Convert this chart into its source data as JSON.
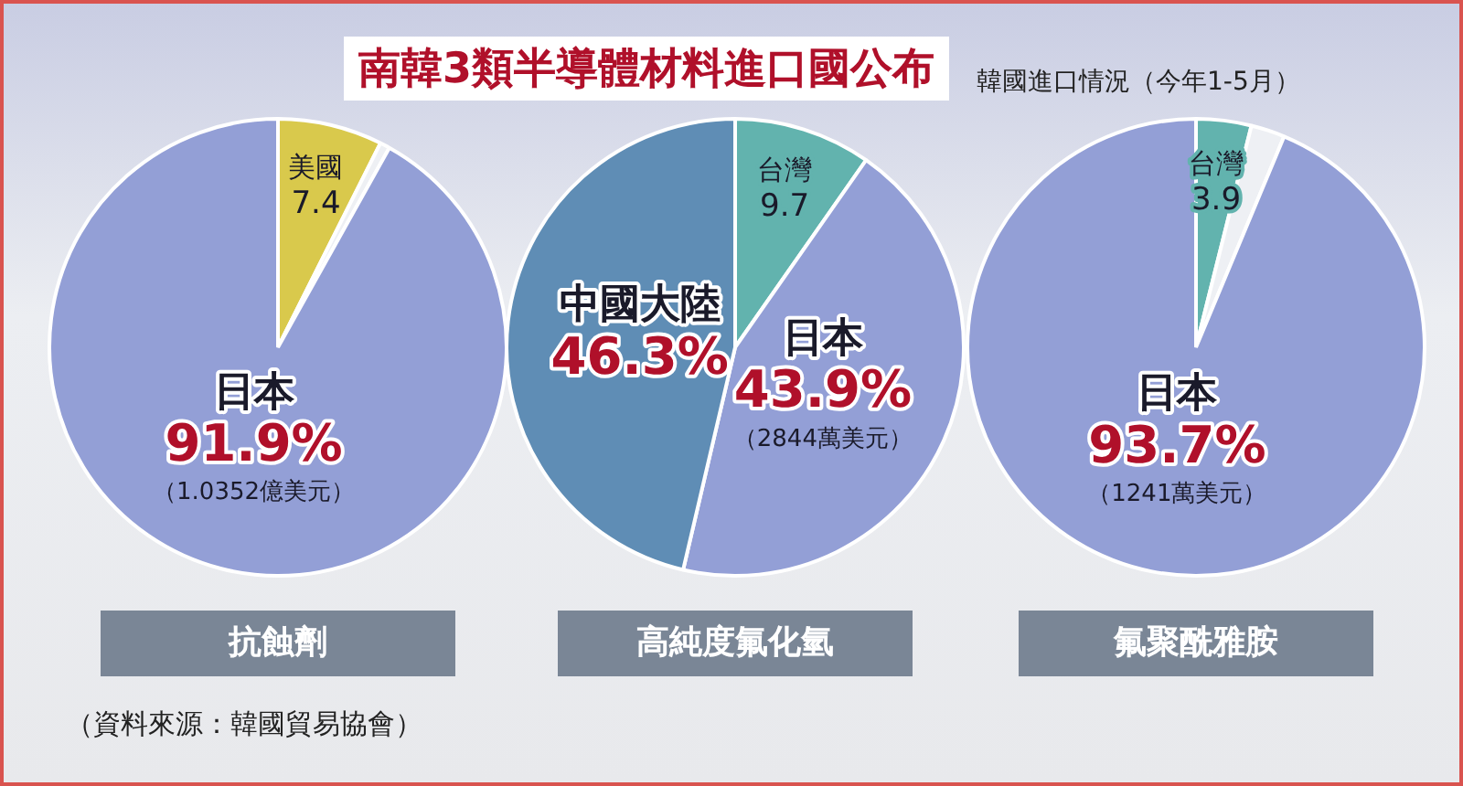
{
  "chart_data": [
    {
      "type": "pie",
      "title": "南韓3類半導體材料進口國公布",
      "xlabel": "抗蝕劑",
      "categories": [
        "美國",
        null,
        "日本"
      ],
      "values": [
        7.4,
        0.7,
        91.9
      ],
      "colors": [
        "#d9c94c",
        "#eef0f4",
        "#939fd6"
      ],
      "value_labels": [
        "7.4",
        null,
        "91.9%"
      ],
      "annotations": [
        {
          "text": "（1.0352億美元）",
          "x": "日本"
        },
        "（資料來源：韓國貿易協會）"
      ]
    },
    {
      "type": "pie",
      "xlabel": "高純度氟化氫",
      "categories": [
        "台灣",
        "日本",
        "中國大陸"
      ],
      "values": [
        9.7,
        43.9,
        46.3
      ],
      "colors": [
        "#62b3ae",
        "#939fd6",
        "#5f8db5"
      ],
      "value_labels": [
        "9.7",
        "43.9%",
        "46.3%"
      ],
      "annotations": [
        {
          "text": "（2844萬美元）",
          "x": "日本"
        }
      ]
    },
    {
      "type": "pie",
      "subtitle": "韓國進口情況（今年1-5月）",
      "xlabel": "氟聚酰雅胺",
      "categories": [
        "台灣",
        null,
        "日本"
      ],
      "values": [
        3.9,
        2.4,
        93.7
      ],
      "colors": [
        "#62b3ae",
        "#eef0f4",
        "#939fd6"
      ],
      "value_labels": [
        "3.9",
        null,
        "93.7%"
      ],
      "annotations": [
        {
          "text": "（1241萬美元）",
          "x": "日本"
        }
      ]
    }
  ]
}
